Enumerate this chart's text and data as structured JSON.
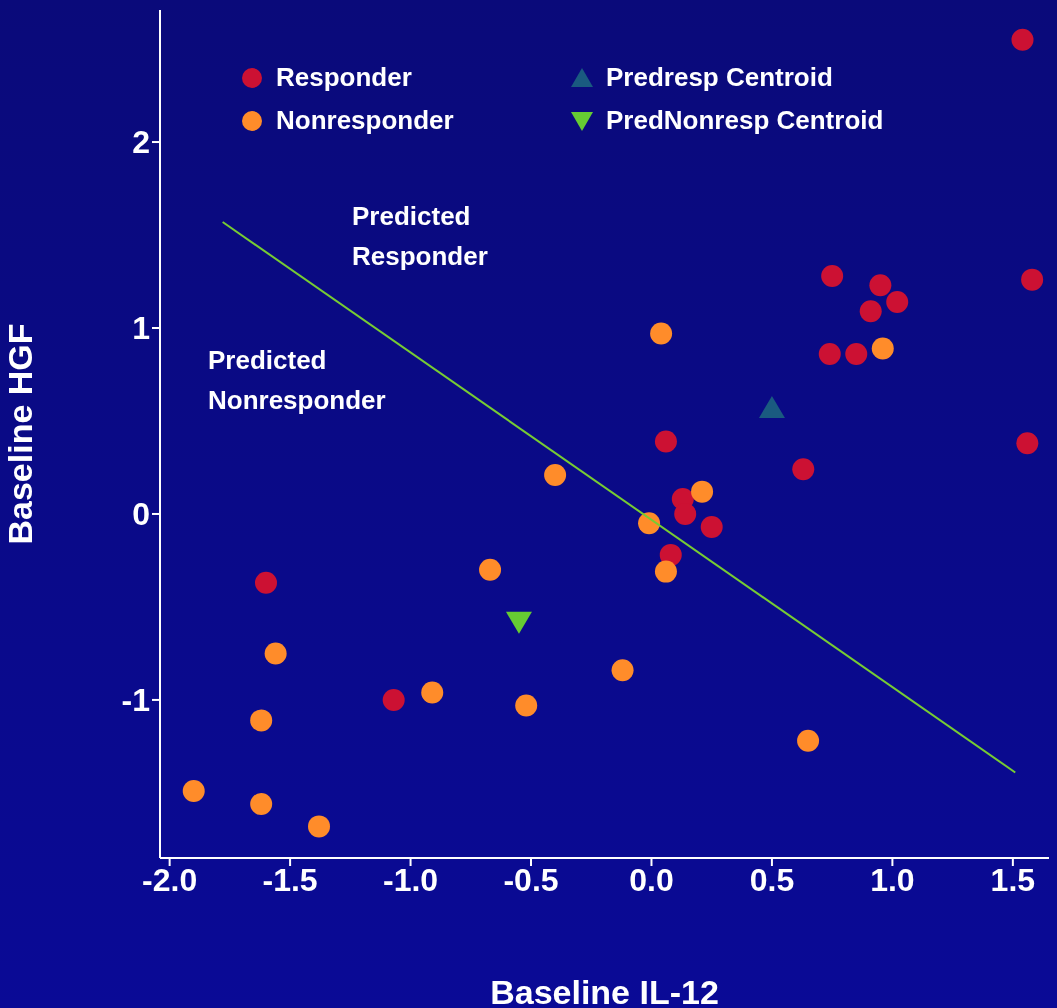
{
  "chart_data": {
    "type": "scatter",
    "xlabel": "Baseline IL-12",
    "ylabel": "Baseline HGF",
    "xlim": [
      -2.04,
      1.65
    ],
    "ylim": [
      -1.85,
      2.71
    ],
    "xticks": [
      {
        "value": -2,
        "label": "-2.0"
      },
      {
        "value": -1.5,
        "label": "-1.5"
      },
      {
        "value": -1,
        "label": "-1.0"
      },
      {
        "value": -0.5,
        "label": "-0.5"
      },
      {
        "value": 0,
        "label": "0.0"
      },
      {
        "value": 0.5,
        "label": "0.5"
      },
      {
        "value": 1,
        "label": "1.0"
      },
      {
        "value": 1.5,
        "label": "1.5"
      }
    ],
    "yticks": [
      -1,
      0,
      1,
      2
    ],
    "legend": "top",
    "annotations": [
      "Predicted Responder",
      "Predicted Nonresponder"
    ],
    "series": [
      {
        "name": "Responder",
        "color": "#cc1133",
        "marker": "circle",
        "x": [
          1.54,
          0.75,
          1.58,
          0.95,
          0.91,
          1.02,
          0.74,
          0.85,
          0.06,
          1.56,
          0.63,
          0.13,
          0.14,
          0.25,
          0.08,
          -1.6,
          -1.07
        ],
        "values": [
          2.55,
          1.28,
          1.26,
          1.23,
          1.09,
          1.14,
          0.86,
          0.86,
          0.39,
          0.38,
          0.24,
          0.08,
          0,
          -0.07,
          -0.22,
          -0.37,
          -1
        ]
      },
      {
        "name": "Nonresponder",
        "color": "#ff8c2a",
        "marker": "circle",
        "x": [
          0.04,
          0.96,
          -0.4,
          0.21,
          -0.01,
          -0.67,
          0.06,
          -1.56,
          -0.12,
          -0.91,
          -0.52,
          -1.62,
          0.65,
          -1.9,
          -1.62,
          -1.38
        ],
        "values": [
          0.97,
          0.89,
          0.21,
          0.12,
          -0.05,
          -0.3,
          -0.31,
          -0.75,
          -0.84,
          -0.96,
          -1.03,
          -1.11,
          -1.22,
          -1.49,
          -1.56,
          -1.68
        ]
      },
      {
        "name": "Predresp Centroid",
        "color": "#1a5a80",
        "marker": "triangle",
        "x": [
          0.5
        ],
        "values": [
          0.57
        ]
      },
      {
        "name": "PredNonresp Centroid",
        "color": "#66cc33",
        "marker": "triangle-down",
        "x": [
          -0.55
        ],
        "values": [
          -0.58
        ]
      },
      {
        "type": "line",
        "color": "#77cc33",
        "marker": "none",
        "x": [
          -1.78,
          1.51
        ],
        "values": [
          1.57,
          -1.39
        ]
      }
    ]
  }
}
